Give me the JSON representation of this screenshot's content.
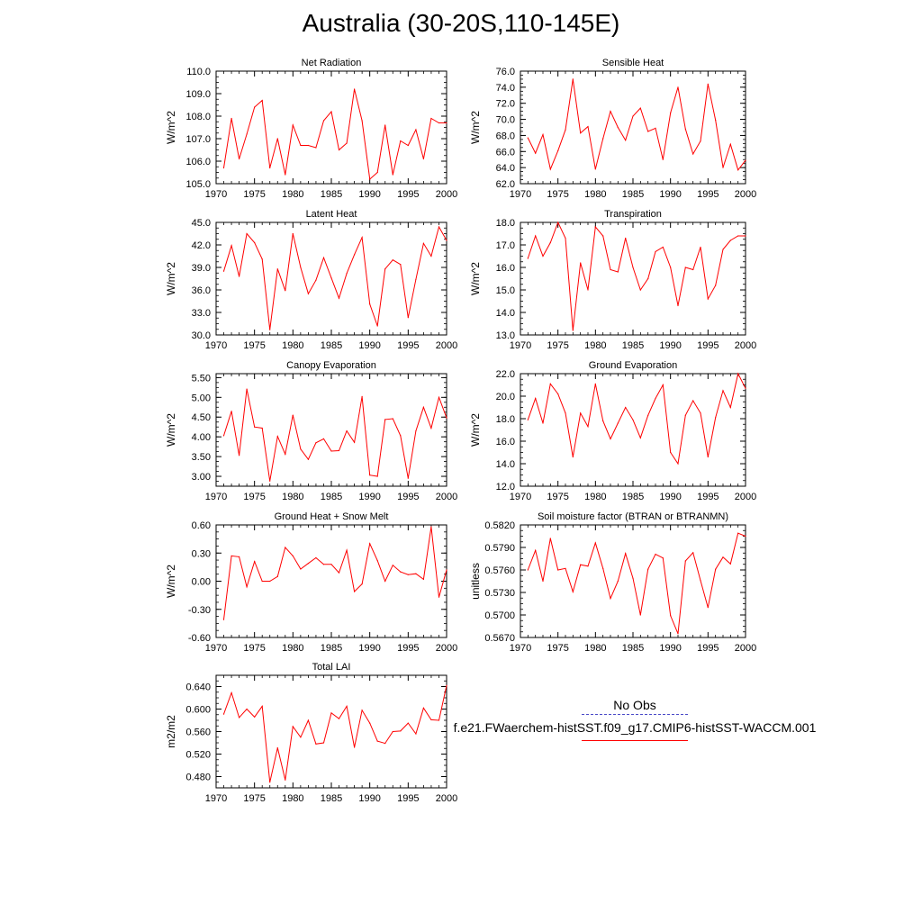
{
  "title": "Australia (30-20S,110-145E)",
  "legend": {
    "obs_label": "No Obs",
    "case_label": "f.e21.FWaerchem-histSST.f09_g17.CMIP6-histSST-WACCM.001",
    "obs_color": "#4a4ac8",
    "case_color": "#ff0000"
  },
  "chart_data": [
    {
      "type": "line",
      "title": "Net Radiation",
      "ylabel": "W/m^2",
      "xlim": [
        1970,
        2000
      ],
      "ylim": [
        105.0,
        110.0
      ],
      "xticks": [
        1970,
        1975,
        1980,
        1985,
        1990,
        1995,
        2000
      ],
      "xtick_labels": [
        "1970",
        "1975",
        "1980",
        "1985",
        "1990",
        "1995",
        "2000"
      ],
      "yticks": [
        105.0,
        106.0,
        107.0,
        108.0,
        109.0,
        110.0
      ],
      "ytick_labels": [
        "105.0",
        "106.0",
        "107.0",
        "108.0",
        "109.0",
        "110.0"
      ],
      "series": [
        {
          "color": "#ff0000",
          "x": [
            1971,
            1972,
            1973,
            1974,
            1975,
            1976,
            1977,
            1978,
            1979,
            1980,
            1981,
            1982,
            1983,
            1984,
            1985,
            1986,
            1987,
            1988,
            1989,
            1990,
            1991,
            1992,
            1993,
            1994,
            1995,
            1996,
            1997,
            1998,
            1999,
            2000
          ],
          "y": [
            105.7,
            107.9,
            106.1,
            107.2,
            108.4,
            108.7,
            105.7,
            107.0,
            105.4,
            107.6,
            106.7,
            106.7,
            106.6,
            107.8,
            108.2,
            106.5,
            106.8,
            109.2,
            107.8,
            105.2,
            105.5,
            107.6,
            105.4,
            106.9,
            106.7,
            107.4,
            106.1,
            107.9,
            107.7,
            107.7
          ]
        }
      ]
    },
    {
      "type": "line",
      "title": "Sensible Heat",
      "ylabel": "W/m^2",
      "xlim": [
        1970,
        2000
      ],
      "ylim": [
        62.0,
        76.0
      ],
      "xticks": [
        1970,
        1975,
        1980,
        1985,
        1990,
        1995,
        2000
      ],
      "xtick_labels": [
        "1970",
        "1975",
        "1980",
        "1985",
        "1990",
        "1995",
        "2000"
      ],
      "yticks": [
        62.0,
        64.0,
        66.0,
        68.0,
        70.0,
        72.0,
        74.0,
        76.0
      ],
      "ytick_labels": [
        "62.0",
        "64.0",
        "66.0",
        "68.0",
        "70.0",
        "72.0",
        "74.0",
        "76.0"
      ],
      "series": [
        {
          "color": "#ff0000",
          "x": [
            1971,
            1972,
            1973,
            1974,
            1975,
            1976,
            1977,
            1978,
            1979,
            1980,
            1981,
            1982,
            1983,
            1984,
            1985,
            1986,
            1987,
            1988,
            1989,
            1990,
            1991,
            1992,
            1993,
            1994,
            1995,
            1996,
            1997,
            1998,
            1999,
            2000
          ],
          "y": [
            67.7,
            65.8,
            68.1,
            63.8,
            66.1,
            68.7,
            75.0,
            68.3,
            69.1,
            63.8,
            67.6,
            71.0,
            69.0,
            67.4,
            70.4,
            71.4,
            68.5,
            68.9,
            65.0,
            70.8,
            74.0,
            68.8,
            65.7,
            67.3,
            74.4,
            69.9,
            64.0,
            66.9,
            63.7,
            64.9
          ]
        }
      ]
    },
    {
      "type": "line",
      "title": "Latent Heat",
      "ylabel": "W/m^2",
      "xlim": [
        1970,
        2000
      ],
      "ylim": [
        30.0,
        45.0
      ],
      "xticks": [
        1970,
        1975,
        1980,
        1985,
        1990,
        1995,
        2000
      ],
      "xtick_labels": [
        "1970",
        "1975",
        "1980",
        "1985",
        "1990",
        "1995",
        "2000"
      ],
      "yticks": [
        30.0,
        33.0,
        36.0,
        39.0,
        42.0,
        45.0
      ],
      "ytick_labels": [
        "30.0",
        "33.0",
        "36.0",
        "39.0",
        "42.0",
        "45.0"
      ],
      "series": [
        {
          "color": "#ff0000",
          "x": [
            1971,
            1972,
            1973,
            1974,
            1975,
            1976,
            1977,
            1978,
            1979,
            1980,
            1981,
            1982,
            1983,
            1984,
            1985,
            1986,
            1987,
            1988,
            1989,
            1990,
            1991,
            1992,
            1993,
            1994,
            1995,
            1996,
            1997,
            1998,
            1999,
            2000
          ],
          "y": [
            38.5,
            41.9,
            37.8,
            43.5,
            42.3,
            40.1,
            30.7,
            38.8,
            35.9,
            43.5,
            39.0,
            35.5,
            37.3,
            40.3,
            37.6,
            34.9,
            38.2,
            40.7,
            43.0,
            34.1,
            31.2,
            38.8,
            40.0,
            39.4,
            32.3,
            37.4,
            42.2,
            40.5,
            44.4,
            42.6
          ]
        }
      ]
    },
    {
      "type": "line",
      "title": "Transpiration",
      "ylabel": "W/m^2",
      "xlim": [
        1970,
        2000
      ],
      "ylim": [
        13.0,
        18.0
      ],
      "xticks": [
        1970,
        1975,
        1980,
        1985,
        1990,
        1995,
        2000
      ],
      "xtick_labels": [
        "1970",
        "1975",
        "1980",
        "1985",
        "1990",
        "1995",
        "2000"
      ],
      "yticks": [
        13.0,
        14.0,
        15.0,
        16.0,
        17.0,
        18.0
      ],
      "ytick_labels": [
        "13.0",
        "14.0",
        "15.0",
        "16.0",
        "17.0",
        "18.0"
      ],
      "series": [
        {
          "color": "#ff0000",
          "x": [
            1971,
            1972,
            1973,
            1974,
            1975,
            1976,
            1977,
            1978,
            1979,
            1980,
            1981,
            1982,
            1983,
            1984,
            1985,
            1986,
            1987,
            1988,
            1989,
            1990,
            1991,
            1992,
            1993,
            1994,
            1995,
            1996,
            1997,
            1998,
            1999,
            2000
          ],
          "y": [
            16.4,
            17.4,
            16.5,
            17.1,
            18.0,
            17.3,
            13.2,
            16.2,
            15.0,
            17.8,
            17.4,
            15.9,
            15.8,
            17.3,
            16.0,
            15.0,
            15.5,
            16.7,
            16.9,
            16.0,
            14.3,
            16.0,
            15.9,
            16.9,
            14.6,
            15.2,
            16.8,
            17.2,
            17.4,
            17.4
          ]
        }
      ]
    },
    {
      "type": "line",
      "title": "Canopy Evaporation",
      "ylabel": "W/m^2",
      "xlim": [
        1970,
        2000
      ],
      "ylim": [
        2.75,
        5.6
      ],
      "xticks": [
        1970,
        1975,
        1980,
        1985,
        1990,
        1995,
        2000
      ],
      "xtick_labels": [
        "1970",
        "1975",
        "1980",
        "1985",
        "1990",
        "1995",
        "2000"
      ],
      "yticks": [
        3.0,
        3.5,
        4.0,
        4.5,
        5.0,
        5.5
      ],
      "ytick_labels": [
        "3.00",
        "3.50",
        "4.00",
        "4.50",
        "5.00",
        "5.50"
      ],
      "series": [
        {
          "color": "#ff0000",
          "x": [
            1971,
            1972,
            1973,
            1974,
            1975,
            1976,
            1977,
            1978,
            1979,
            1980,
            1981,
            1982,
            1983,
            1984,
            1985,
            1986,
            1987,
            1988,
            1989,
            1990,
            1991,
            1992,
            1993,
            1994,
            1995,
            1996,
            1997,
            1998,
            1999,
            2000
          ],
          "y": [
            4.03,
            4.65,
            3.53,
            5.21,
            4.25,
            4.22,
            2.88,
            4.01,
            3.56,
            4.55,
            3.69,
            3.43,
            3.85,
            3.95,
            3.64,
            3.65,
            4.15,
            3.86,
            5.02,
            3.03,
            3.0,
            4.44,
            4.46,
            4.03,
            2.95,
            4.15,
            4.75,
            4.22,
            5.0,
            4.48
          ]
        }
      ]
    },
    {
      "type": "line",
      "title": "Ground Evaporation",
      "ylabel": "W/m^2",
      "xlim": [
        1970,
        2000
      ],
      "ylim": [
        12.0,
        22.0
      ],
      "xticks": [
        1970,
        1975,
        1980,
        1985,
        1990,
        1995,
        2000
      ],
      "xtick_labels": [
        "1970",
        "1975",
        "1980",
        "1985",
        "1990",
        "1995",
        "2000"
      ],
      "yticks": [
        12.0,
        14.0,
        16.0,
        18.0,
        20.0,
        22.0
      ],
      "ytick_labels": [
        "12.0",
        "14.0",
        "16.0",
        "18.0",
        "20.0",
        "22.0"
      ],
      "series": [
        {
          "color": "#ff0000",
          "x": [
            1971,
            1972,
            1973,
            1974,
            1975,
            1976,
            1977,
            1978,
            1979,
            1980,
            1981,
            1982,
            1983,
            1984,
            1985,
            1986,
            1987,
            1988,
            1989,
            1990,
            1991,
            1992,
            1993,
            1994,
            1995,
            1996,
            1997,
            1998,
            1999,
            2000
          ],
          "y": [
            17.9,
            19.8,
            17.6,
            21.1,
            20.2,
            18.5,
            14.6,
            18.5,
            17.3,
            21.1,
            17.8,
            16.2,
            17.6,
            19.0,
            17.9,
            16.3,
            18.3,
            19.8,
            21.0,
            15.0,
            14.0,
            18.3,
            19.6,
            18.5,
            14.6,
            18.1,
            20.5,
            19.0,
            22.0,
            20.7
          ]
        }
      ]
    },
    {
      "type": "line",
      "title": "Ground Heat + Snow Melt",
      "ylabel": "W/m^2",
      "xlim": [
        1970,
        2000
      ],
      "ylim": [
        -0.6,
        0.6
      ],
      "xticks": [
        1970,
        1975,
        1980,
        1985,
        1990,
        1995,
        2000
      ],
      "xtick_labels": [
        "1970",
        "1975",
        "1980",
        "1985",
        "1990",
        "1995",
        "2000"
      ],
      "yticks": [
        -0.6,
        -0.3,
        0.0,
        0.3,
        0.6
      ],
      "ytick_labels": [
        "-0.60",
        "-0.30",
        "0.00",
        "0.30",
        "0.60"
      ],
      "series": [
        {
          "color": "#ff0000",
          "x": [
            1971,
            1972,
            1973,
            1974,
            1975,
            1976,
            1977,
            1978,
            1979,
            1980,
            1981,
            1982,
            1983,
            1984,
            1985,
            1986,
            1987,
            1988,
            1989,
            1990,
            1991,
            1992,
            1993,
            1994,
            1995,
            1996,
            1997,
            1998,
            1999,
            2000
          ],
          "y": [
            -0.41,
            0.27,
            0.26,
            -0.06,
            0.21,
            0.0,
            0.0,
            0.05,
            0.36,
            0.27,
            0.13,
            0.19,
            0.25,
            0.18,
            0.18,
            0.09,
            0.33,
            -0.11,
            -0.03,
            0.4,
            0.22,
            0.0,
            0.17,
            0.1,
            0.07,
            0.08,
            0.02,
            0.58,
            -0.17,
            0.12
          ]
        }
      ]
    },
    {
      "type": "line",
      "title": "Soil moisture factor (BTRAN or BTRANMN)",
      "ylabel": "unitless",
      "xlim": [
        1970,
        2000
      ],
      "ylim": [
        0.567,
        0.582
      ],
      "xticks": [
        1970,
        1975,
        1980,
        1985,
        1990,
        1995,
        2000
      ],
      "xtick_labels": [
        "1970",
        "1975",
        "1980",
        "1985",
        "1990",
        "1995",
        "2000"
      ],
      "yticks": [
        0.567,
        0.57,
        0.573,
        0.576,
        0.579,
        0.582
      ],
      "ytick_labels": [
        "0.5670",
        "0.5700",
        "0.5730",
        "0.5760",
        "0.5790",
        "0.5820"
      ],
      "series": [
        {
          "color": "#ff0000",
          "x": [
            1971,
            1972,
            1973,
            1974,
            1975,
            1976,
            1977,
            1978,
            1979,
            1980,
            1981,
            1982,
            1983,
            1984,
            1985,
            1986,
            1987,
            1988,
            1989,
            1990,
            1991,
            1992,
            1993,
            1994,
            1995,
            1996,
            1997,
            1998,
            1999,
            2000
          ],
          "y": [
            0.576,
            0.5786,
            0.5745,
            0.5802,
            0.576,
            0.5762,
            0.5731,
            0.5767,
            0.5765,
            0.5796,
            0.5762,
            0.5722,
            0.5745,
            0.5782,
            0.5749,
            0.57,
            0.5761,
            0.5781,
            0.5776,
            0.5699,
            0.5675,
            0.5772,
            0.5783,
            0.5746,
            0.571,
            0.5761,
            0.5777,
            0.5768,
            0.5809,
            0.5805
          ]
        }
      ]
    },
    {
      "type": "line",
      "title": "Total LAI",
      "ylabel": "m2/m2",
      "xlim": [
        1970,
        2000
      ],
      "ylim": [
        0.46,
        0.66
      ],
      "xticks": [
        1970,
        1975,
        1980,
        1985,
        1990,
        1995,
        2000
      ],
      "xtick_labels": [
        "1970",
        "1975",
        "1980",
        "1985",
        "1990",
        "1995",
        "2000"
      ],
      "yticks": [
        0.48,
        0.52,
        0.56,
        0.6,
        0.64
      ],
      "ytick_labels": [
        "0.480",
        "0.520",
        "0.560",
        "0.600",
        "0.640"
      ],
      "series": [
        {
          "color": "#ff0000",
          "x": [
            1971,
            1972,
            1973,
            1974,
            1975,
            1976,
            1977,
            1978,
            1979,
            1980,
            1981,
            1982,
            1983,
            1984,
            1985,
            1986,
            1987,
            1988,
            1989,
            1990,
            1991,
            1992,
            1993,
            1994,
            1995,
            1996,
            1997,
            1998,
            1999,
            2000
          ],
          "y": [
            0.591,
            0.629,
            0.585,
            0.6,
            0.586,
            0.605,
            0.47,
            0.531,
            0.474,
            0.569,
            0.55,
            0.58,
            0.538,
            0.54,
            0.593,
            0.583,
            0.605,
            0.532,
            0.598,
            0.575,
            0.543,
            0.539,
            0.56,
            0.561,
            0.575,
            0.556,
            0.602,
            0.581,
            0.58,
            0.642
          ]
        }
      ]
    }
  ]
}
